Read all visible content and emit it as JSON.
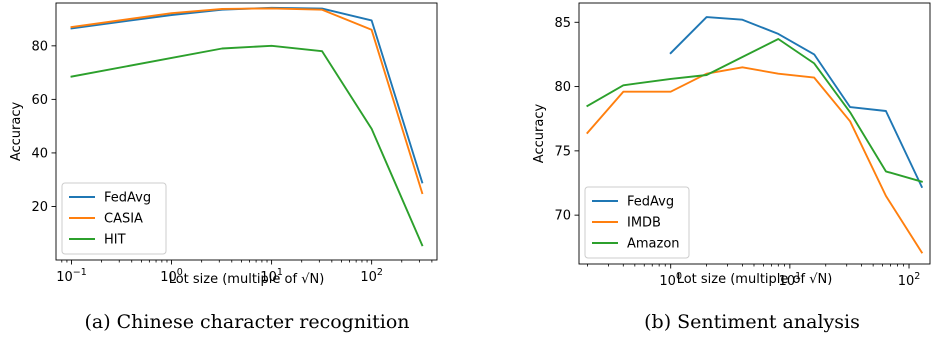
{
  "chart_data": [
    {
      "type": "line",
      "caption": "(a) Chinese character recognition",
      "xlabel": "Lot size (multiple of √N)",
      "ylabel": "Accuracy",
      "xscale": "log",
      "xlim": [
        0.07,
        450
      ],
      "ylim": [
        0,
        96
      ],
      "xticks": [
        0.1,
        1,
        10,
        100
      ],
      "xtick_labels": [
        {
          "base": "10",
          "exp": "−1"
        },
        {
          "base": "10",
          "exp": "0"
        },
        {
          "base": "10",
          "exp": "1"
        },
        {
          "base": "10",
          "exp": "2"
        }
      ],
      "yticks": [
        20,
        40,
        60,
        80
      ],
      "ytick_labels": [
        "20",
        "40",
        "60",
        "80"
      ],
      "legend": "lower-left",
      "series": [
        {
          "name": "FedAvg",
          "color": "#1f77b4",
          "x": [
            0.1,
            1,
            3.2,
            10,
            32,
            100,
            320
          ],
          "y": [
            86.5,
            91.5,
            93.5,
            94.2,
            93.9,
            89.5,
            29
          ]
        },
        {
          "name": "CASIA",
          "color": "#ff7f0e",
          "x": [
            0.1,
            1,
            3.2,
            10,
            32,
            100,
            320
          ],
          "y": [
            87,
            92.2,
            93.8,
            94,
            93.5,
            86,
            25
          ]
        },
        {
          "name": "HIT",
          "color": "#2ca02c",
          "x": [
            0.1,
            1,
            3.2,
            10,
            32,
            100,
            320
          ],
          "y": [
            68.5,
            75.5,
            79,
            80,
            78,
            49,
            5.5
          ]
        }
      ]
    },
    {
      "type": "line",
      "caption": "(b) Sentiment analysis",
      "xlabel": "Lot size (multiple of √N)",
      "ylabel": "Accuracy",
      "xscale": "log",
      "xlim": [
        0.17,
        150
      ],
      "ylim": [
        66.2,
        86.5
      ],
      "xticks": [
        1,
        10,
        100
      ],
      "xtick_labels": [
        {
          "base": "10",
          "exp": "0"
        },
        {
          "base": "10",
          "exp": "1"
        },
        {
          "base": "10",
          "exp": "2"
        }
      ],
      "yticks": [
        70,
        75,
        80,
        85
      ],
      "ytick_labels": [
        "70",
        "75",
        "80",
        "85"
      ],
      "legend": "lower-left",
      "series": [
        {
          "name": "FedAvg",
          "color": "#1f77b4",
          "x": [
            1,
            2,
            4,
            8,
            16,
            32,
            64,
            128
          ],
          "y": [
            82.6,
            85.4,
            85.2,
            84.1,
            82.5,
            78.4,
            78.1,
            72.2
          ]
        },
        {
          "name": "IMDB",
          "color": "#ff7f0e",
          "x": [
            0.2,
            0.4,
            1,
            2,
            4,
            8,
            16,
            32,
            64,
            128
          ],
          "y": [
            76.4,
            79.6,
            79.6,
            81.0,
            81.5,
            81.0,
            80.7,
            77.3,
            71.5,
            67.1
          ]
        },
        {
          "name": "Amazon",
          "color": "#2ca02c",
          "x": [
            0.2,
            0.4,
            1,
            2,
            4,
            8,
            16,
            32,
            64,
            128
          ],
          "y": [
            78.5,
            80.1,
            80.6,
            80.9,
            82.3,
            83.7,
            81.8,
            78.0,
            73.4,
            72.6
          ]
        }
      ]
    }
  ]
}
